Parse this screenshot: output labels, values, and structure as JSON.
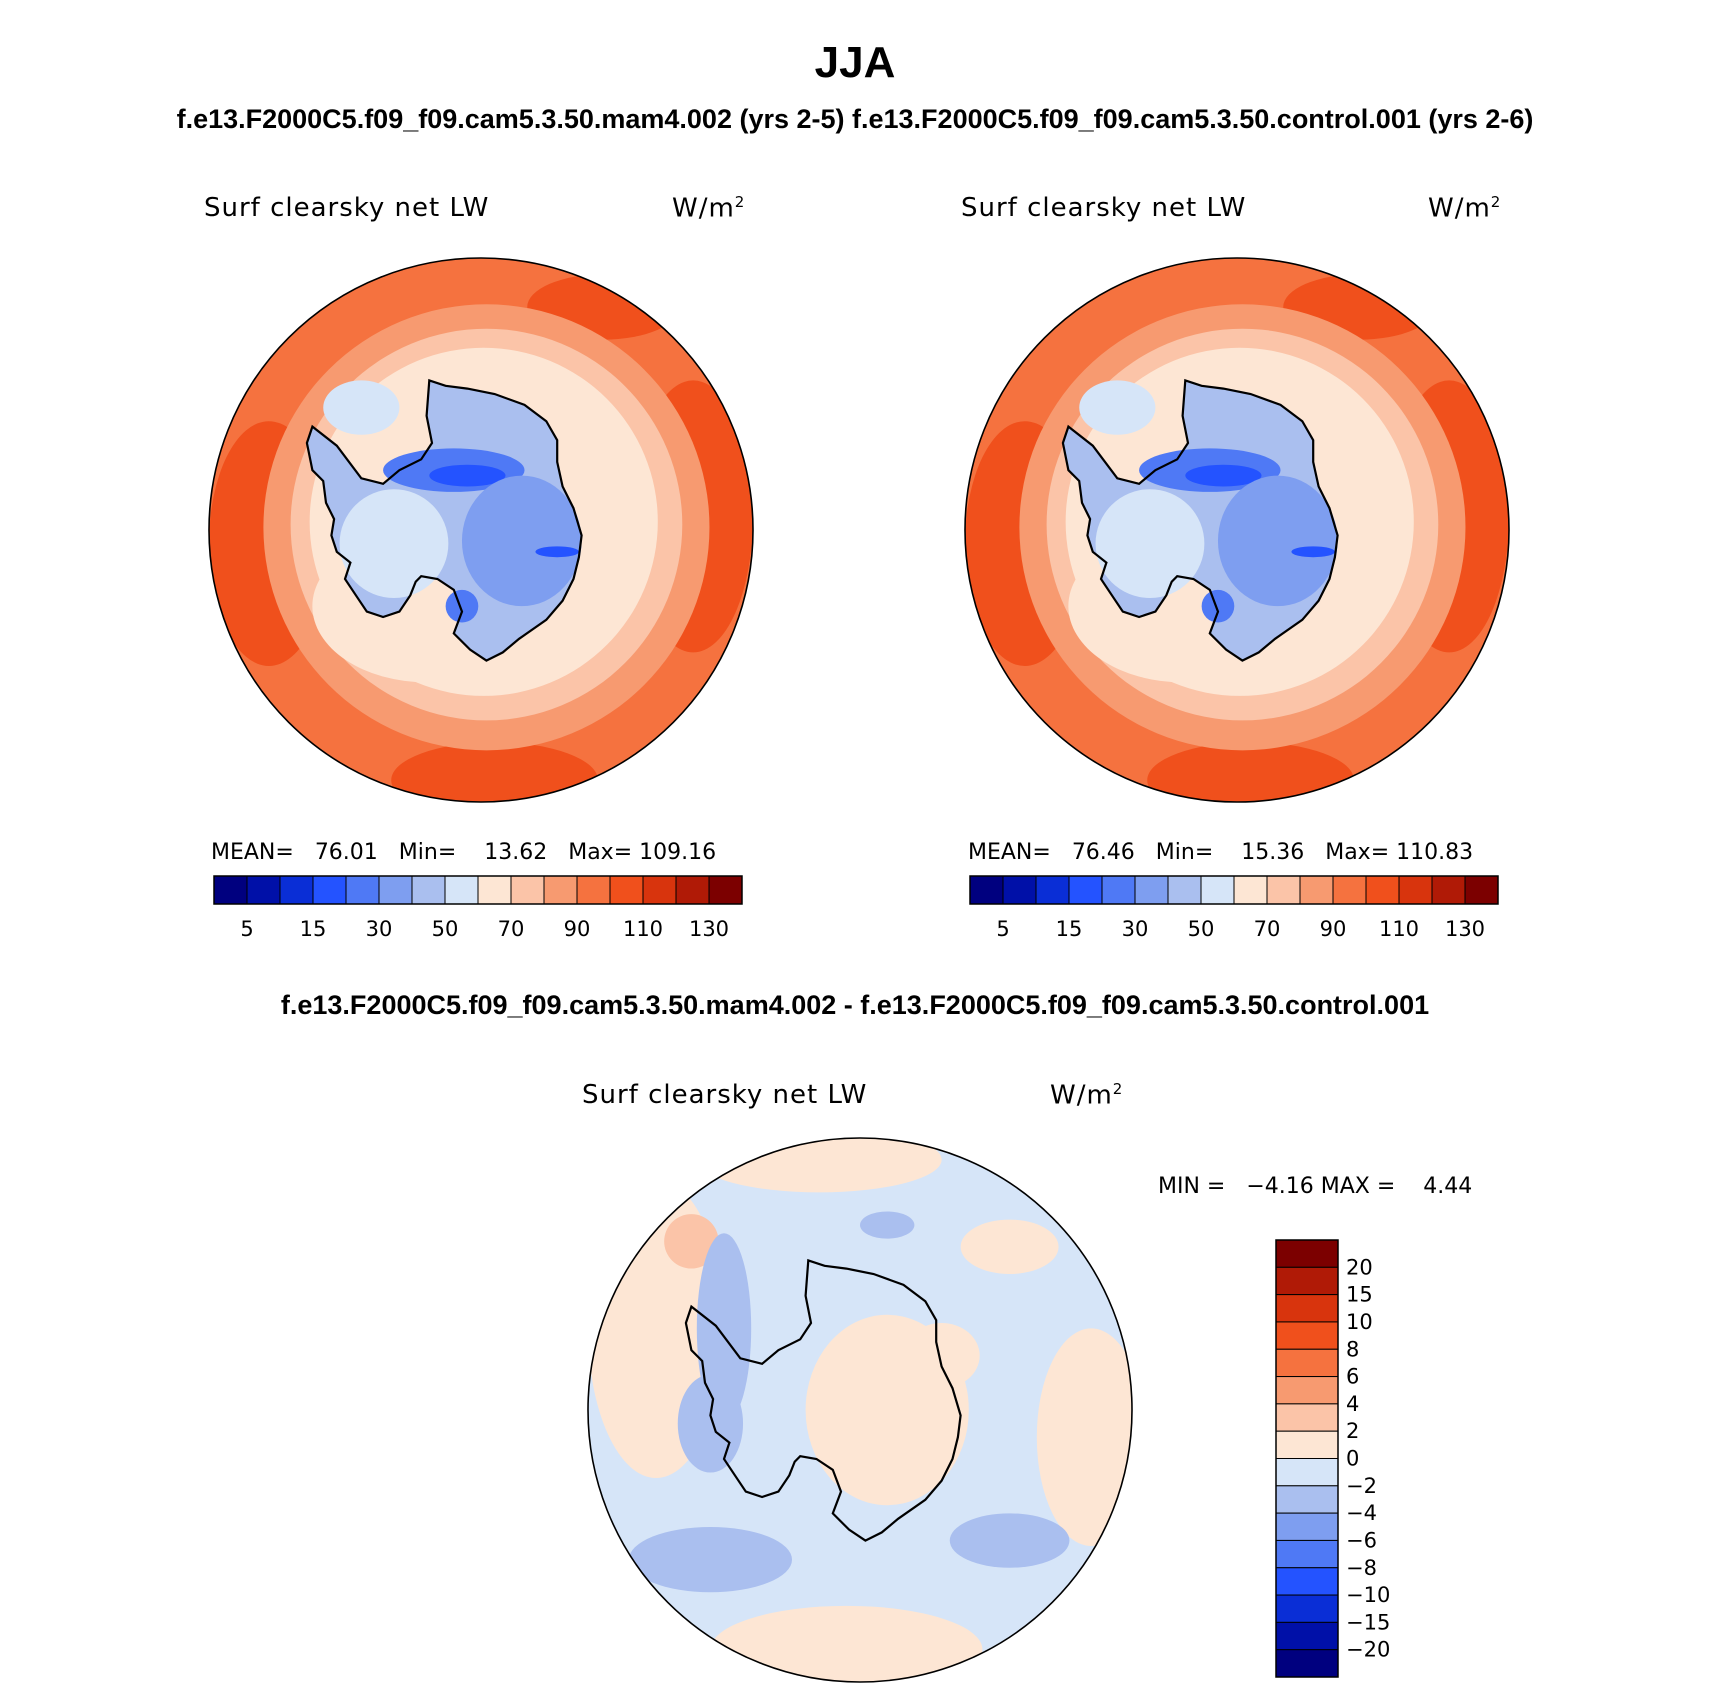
{
  "season_title": "JJA",
  "cases_title": "f.e13.F2000C5.f09_f09.cam5.3.50.mam4.002 (yrs 2-5) f.e13.F2000C5.f09_f09.cam5.3.50.control.001 (yrs 2-6)",
  "diff_title": "f.e13.F2000C5.f09_f09.cam5.3.50.mam4.002 - f.e13.F2000C5.f09_f09.cam5.3.50.control.001",
  "chart_data": [
    {
      "type": "heatmap",
      "projection": "south polar stereographic",
      "variable": "Surf clearsky net LW",
      "units": "W/m2",
      "case": "f.e13.F2000C5.f09_f09.cam5.3.50.mam4.002 (yrs 2-5)",
      "stats": {
        "mean_label": "MEAN=",
        "mean": "76.01",
        "min_label": "Min=",
        "min": "13.62",
        "max_label": "Max=",
        "max": "109.16"
      },
      "colorbar_ticks": [
        "5",
        "15",
        "30",
        "50",
        "70",
        "90",
        "110",
        "130"
      ],
      "colorbar_colors": [
        "#00007f",
        "#0010a8",
        "#0a2ed6",
        "#2453ff",
        "#4f79f5",
        "#7e9ef0",
        "#aabfef",
        "#d6e5f8",
        "#fde6d4",
        "#fbc4a8",
        "#f79a70",
        "#f5723f",
        "#f0501c",
        "#d8340d",
        "#b01a06",
        "#7c0000"
      ]
    },
    {
      "type": "heatmap",
      "projection": "south polar stereographic",
      "variable": "Surf clearsky net LW",
      "units": "W/m2",
      "case": "f.e13.F2000C5.f09_f09.cam5.3.50.control.001 (yrs 2-6)",
      "stats": {
        "mean_label": "MEAN=",
        "mean": "76.46",
        "min_label": "Min=",
        "min": "15.36",
        "max_label": "Max=",
        "max": "110.83"
      },
      "colorbar_ticks": [
        "5",
        "15",
        "30",
        "50",
        "70",
        "90",
        "110",
        "130"
      ],
      "colorbar_colors": [
        "#00007f",
        "#0010a8",
        "#0a2ed6",
        "#2453ff",
        "#4f79f5",
        "#7e9ef0",
        "#aabfef",
        "#d6e5f8",
        "#fde6d4",
        "#fbc4a8",
        "#f79a70",
        "#f5723f",
        "#f0501c",
        "#d8340d",
        "#b01a06",
        "#7c0000"
      ]
    },
    {
      "type": "heatmap",
      "projection": "south polar stereographic",
      "variable": "Surf clearsky net LW",
      "units": "W/m2",
      "case": "difference",
      "stats": {
        "min_label": "MIN =",
        "min": "−4.16",
        "max_label": "MAX =",
        "max": "4.44"
      },
      "colorbar_ticks": [
        "20",
        "15",
        "10",
        "8",
        "6",
        "4",
        "2",
        "0",
        "−2",
        "−4",
        "−6",
        "−8",
        "−10",
        "−15",
        "−20"
      ],
      "colorbar_colors": [
        "#7c0000",
        "#b01a06",
        "#d8340d",
        "#f0501c",
        "#f5723f",
        "#f79a70",
        "#fbc4a8",
        "#fde6d4",
        "#d6e5f8",
        "#aabfef",
        "#7e9ef0",
        "#4f79f5",
        "#2453ff",
        "#0a2ed6",
        "#0010a8",
        "#00007f"
      ]
    }
  ]
}
